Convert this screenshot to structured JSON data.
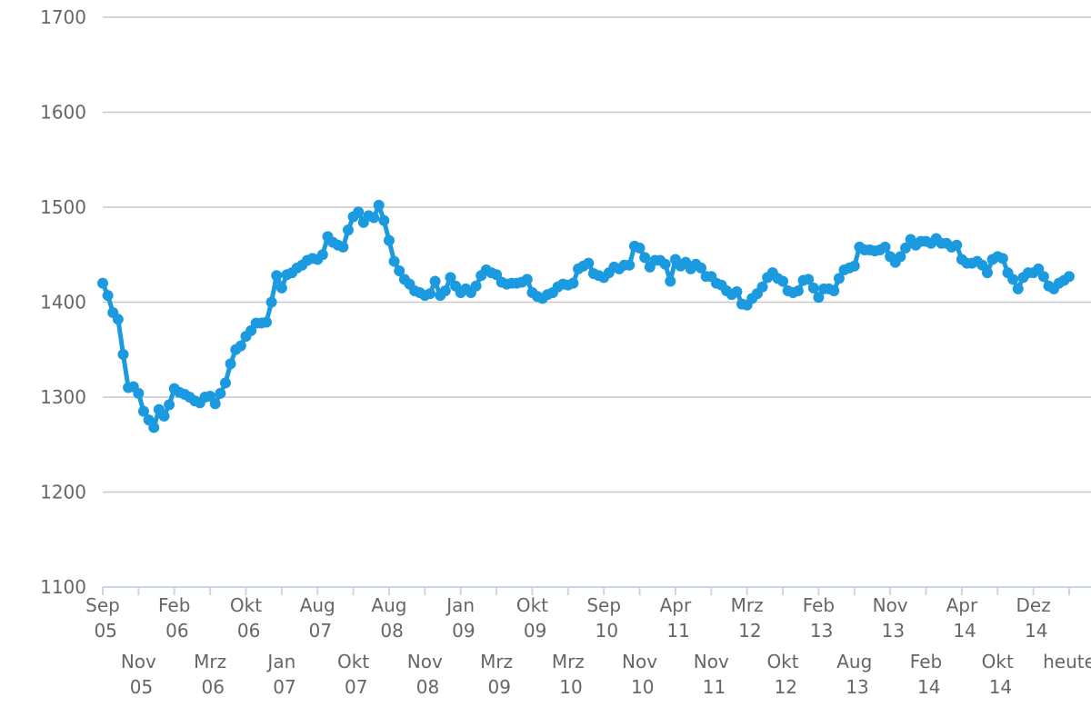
{
  "chart_data": {
    "type": "line",
    "categories": [
      "Sep 05",
      null,
      null,
      null,
      null,
      null,
      null,
      "Nov 05",
      null,
      null,
      null,
      null,
      null,
      null,
      "Feb 06",
      null,
      null,
      null,
      null,
      null,
      null,
      "Mrz 06",
      null,
      null,
      null,
      null,
      null,
      null,
      "Okt 06",
      null,
      null,
      null,
      null,
      null,
      null,
      "Jan 07",
      null,
      null,
      null,
      null,
      null,
      null,
      "Aug 07",
      null,
      null,
      null,
      null,
      null,
      null,
      "Okt 07",
      null,
      null,
      null,
      null,
      null,
      null,
      "Aug 08",
      null,
      null,
      null,
      null,
      null,
      null,
      "Nov 08",
      null,
      null,
      null,
      null,
      null,
      null,
      "Jan 09",
      null,
      null,
      null,
      null,
      null,
      null,
      "Mrz 09",
      null,
      null,
      null,
      null,
      null,
      null,
      "Okt 09",
      null,
      null,
      null,
      null,
      null,
      null,
      "Mrz 10",
      null,
      null,
      null,
      null,
      null,
      null,
      "Sep 10",
      null,
      null,
      null,
      null,
      null,
      null,
      "Nov 10",
      null,
      null,
      null,
      null,
      null,
      null,
      "Apr 11",
      null,
      null,
      null,
      null,
      null,
      null,
      "Nov 11",
      null,
      null,
      null,
      null,
      null,
      null,
      "Mrz 12",
      null,
      null,
      null,
      null,
      null,
      null,
      "Okt 12",
      null,
      null,
      null,
      null,
      null,
      null,
      "Feb 13",
      null,
      null,
      null,
      null,
      null,
      null,
      "Aug 13",
      null,
      null,
      null,
      null,
      null,
      null,
      "Nov 13",
      null,
      null,
      null,
      null,
      null,
      null,
      "Feb 14",
      null,
      null,
      null,
      null,
      null,
      null,
      "Apr 14",
      null,
      null,
      null,
      null,
      null,
      null,
      "Okt 14",
      null,
      null,
      null,
      null,
      null,
      null,
      "Dez 14",
      null,
      null,
      null,
      null,
      null,
      null,
      "heute"
    ],
    "values": [
      1420,
      1407,
      1389,
      1382,
      1345,
      1310,
      1311,
      1304,
      1285,
      1276,
      1268,
      1287,
      1280,
      1292,
      1309,
      1305,
      1303,
      1300,
      1296,
      1294,
      1300,
      1301,
      1293,
      1304,
      1315,
      1335,
      1350,
      1354,
      1364,
      1370,
      1378,
      1378,
      1379,
      1400,
      1428,
      1415,
      1429,
      1431,
      1436,
      1439,
      1444,
      1446,
      1445,
      1450,
      1469,
      1463,
      1460,
      1458,
      1476,
      1490,
      1495,
      1484,
      1491,
      1489,
      1502,
      1486,
      1465,
      1443,
      1433,
      1424,
      1419,
      1412,
      1410,
      1407,
      1409,
      1422,
      1407,
      1412,
      1426,
      1417,
      1410,
      1414,
      1410,
      1417,
      1428,
      1434,
      1431,
      1429,
      1421,
      1419,
      1420,
      1420,
      1421,
      1424,
      1410,
      1406,
      1404,
      1408,
      1410,
      1416,
      1419,
      1418,
      1420,
      1435,
      1438,
      1441,
      1430,
      1428,
      1426,
      1431,
      1437,
      1435,
      1439,
      1439,
      1459,
      1457,
      1447,
      1437,
      1444,
      1444,
      1440,
      1422,
      1445,
      1438,
      1442,
      1435,
      1440,
      1436,
      1427,
      1427,
      1420,
      1418,
      1412,
      1408,
      1411,
      1398,
      1397,
      1404,
      1409,
      1416,
      1426,
      1431,
      1425,
      1422,
      1412,
      1410,
      1412,
      1423,
      1424,
      1415,
      1405,
      1414,
      1414,
      1412,
      1425,
      1434,
      1436,
      1438,
      1458,
      1455,
      1455,
      1454,
      1455,
      1458,
      1448,
      1442,
      1448,
      1457,
      1466,
      1460,
      1464,
      1464,
      1462,
      1467,
      1462,
      1462,
      1458,
      1460,
      1445,
      1441,
      1441,
      1443,
      1439,
      1431,
      1445,
      1448,
      1446,
      1431,
      1424,
      1414,
      1426,
      1431,
      1431,
      1435,
      1427,
      1417,
      1414,
      1420,
      1423,
      1427
    ],
    "color": "#1b9ae0",
    "ylim": [
      1100,
      1700
    ],
    "yticks": [
      1100,
      1200,
      1300,
      1400,
      1500,
      1600,
      1700
    ],
    "grid": true
  }
}
